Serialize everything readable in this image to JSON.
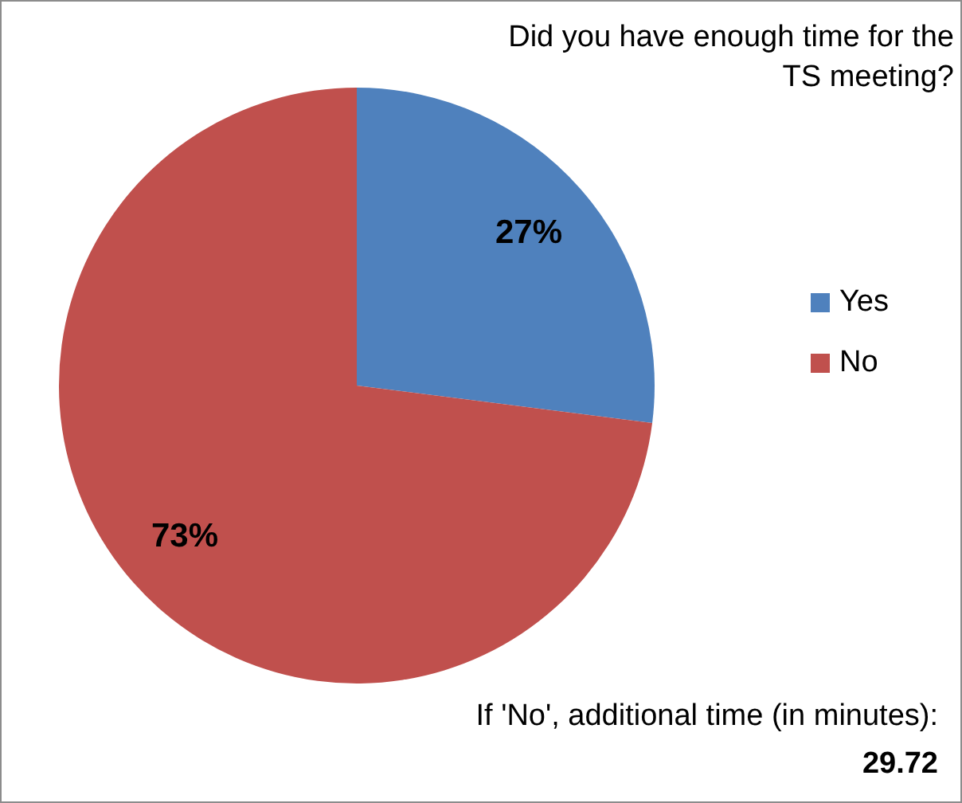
{
  "chart_data": {
    "type": "pie",
    "title": "Did you have enough time for the TS meeting?",
    "categories": [
      "Yes",
      "No"
    ],
    "values": [
      27,
      73
    ],
    "colors": [
      "#4f81bd",
      "#c0504d"
    ],
    "value_labels": [
      "27%",
      "73%"
    ],
    "legend": "right",
    "annotations": [
      "If 'No', additional time (in minutes):",
      "29.72"
    ]
  }
}
